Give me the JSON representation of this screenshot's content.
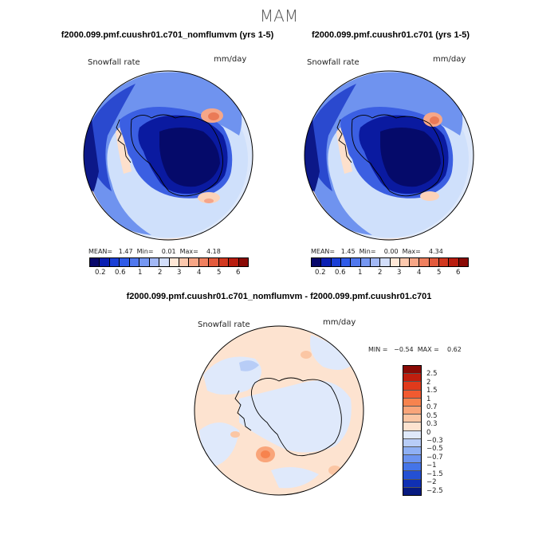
{
  "season": "MAM",
  "panels": [
    {
      "title": "f2000.099.pmf.cuushr01.c701_nomflumvm (yrs 1-5)",
      "variable": "Snowfall rate",
      "units": "mm/day",
      "stats_label": "MEAN=   1.47  Min=    0.01  Max=    4.18",
      "mean": 1.47,
      "min": 0.01,
      "max": 4.18
    },
    {
      "title": "f2000.099.pmf.cuushr01.c701 (yrs 1-5)",
      "variable": "Snowfall rate",
      "units": "mm/day",
      "stats_label": "MEAN=   1.45  Min=    0.00  Max=    4.34",
      "mean": 1.45,
      "min": 0.0,
      "max": 4.34
    },
    {
      "title": "f2000.099.pmf.cuushr01.c701_nomflumvm - f2000.099.pmf.cuushr01.c701",
      "variable": "Snowfall rate",
      "units": "mm/day",
      "stats_label": "MIN =   −0.54  MAX =    0.62",
      "min": -0.54,
      "max": 0.62
    }
  ],
  "colorbar_top": {
    "ticks": [
      "0.2",
      "0.6",
      "1",
      "2",
      "3",
      "4",
      "5",
      "6"
    ],
    "colors": [
      "#08086b",
      "#0a1fb3",
      "#1a3fd6",
      "#2f5be8",
      "#5078ee",
      "#7597f2",
      "#a2b8f5",
      "#d2defa",
      "#ffe7d6",
      "#fcc8ad",
      "#f7a686",
      "#f0805f",
      "#e35a3c",
      "#d2381f",
      "#b81c0e",
      "#8a0a05"
    ]
  },
  "colorbar_diff": {
    "labels": [
      "2.5",
      "2",
      "1.5",
      "1",
      "0.7",
      "0.5",
      "0.3",
      "0",
      "−0.3",
      "−0.5",
      "−0.7",
      "−1",
      "−1.5",
      "−2",
      "−2.5"
    ],
    "colors": [
      "#8a0a05",
      "#c01e0e",
      "#e03a1c",
      "#f25a30",
      "#f7834e",
      "#f9a57a",
      "#fbc6a4",
      "#fde3d0",
      "#dfe9fb",
      "#b8cdf7",
      "#8fb0f4",
      "#6b93f0",
      "#4474e8",
      "#2450d4",
      "#1030b4",
      "#071a80"
    ]
  }
}
